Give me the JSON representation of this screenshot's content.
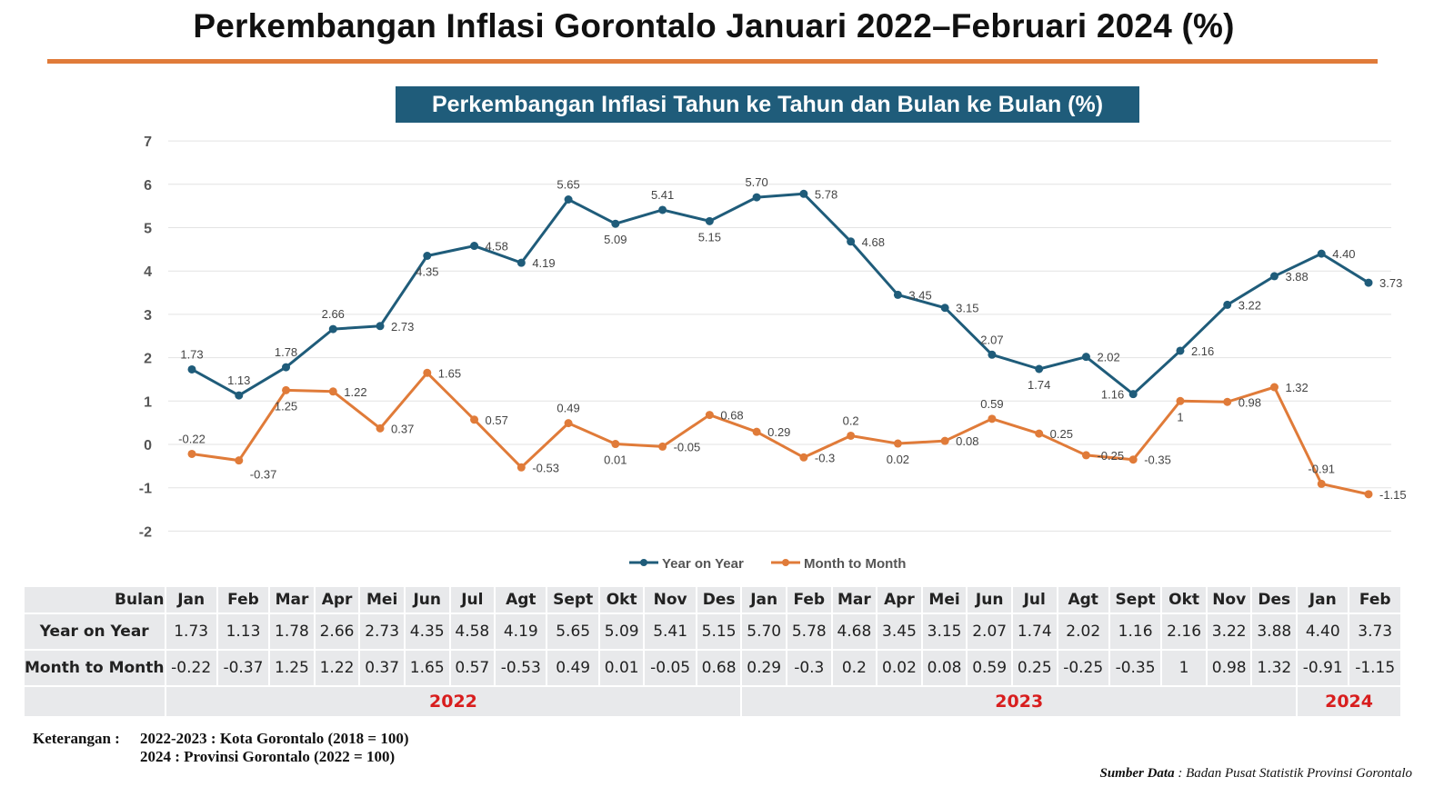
{
  "title": "Perkembangan Inflasi Gorontalo Januari 2022–Februari 2024 (%)",
  "subtitle": "Perkembangan Inflasi Tahun ke Tahun dan Bulan ke Bulan (%)",
  "colors": {
    "yoy": "#1f5c7a",
    "mtm": "#e07b39",
    "accent_rule": "#e07b39",
    "year_text": "#d81e1e"
  },
  "chart_data": {
    "type": "line",
    "title": "Perkembangan Inflasi Tahun ke Tahun dan Bulan ke Bulan (%)",
    "categories": [
      "Jan",
      "Feb",
      "Mar",
      "Apr",
      "Mei",
      "Jun",
      "Jul",
      "Agt",
      "Sept",
      "Okt",
      "Nov",
      "Des",
      "Jan",
      "Feb",
      "Mar",
      "Apr",
      "Mei",
      "Jun",
      "Jul",
      "Agt",
      "Sept",
      "Okt",
      "Nov",
      "Des",
      "Jan",
      "Feb"
    ],
    "years": [
      {
        "label": "2022",
        "months": 12
      },
      {
        "label": "2023",
        "months": 12
      },
      {
        "label": "2024",
        "months": 2
      }
    ],
    "series": [
      {
        "name": "Year on Year",
        "color": "#1f5c7a",
        "values": [
          1.73,
          1.13,
          1.78,
          2.66,
          2.73,
          4.35,
          4.58,
          4.19,
          5.65,
          5.09,
          5.41,
          5.15,
          5.7,
          5.78,
          4.68,
          3.45,
          3.15,
          2.07,
          1.74,
          2.02,
          1.16,
          2.16,
          3.22,
          3.88,
          4.4,
          3.73
        ],
        "labels": [
          "1.73",
          "1.13",
          "1.78",
          "2.66",
          "2.73",
          "4.35",
          "4.58",
          "4.19",
          "5.65",
          "5.09",
          "5.41",
          "5.15",
          "5.70",
          "5.78",
          "4.68",
          "3.45",
          "3.15",
          "2.07",
          "1.74",
          "2.02",
          "1.16",
          "2.16",
          "3.22",
          "3.88",
          "4.40",
          "3.73"
        ]
      },
      {
        "name": "Month to Month",
        "color": "#e07b39",
        "values": [
          -0.22,
          -0.37,
          1.25,
          1.22,
          0.37,
          1.65,
          0.57,
          -0.53,
          0.49,
          0.01,
          -0.05,
          0.68,
          0.29,
          -0.3,
          0.2,
          0.02,
          0.08,
          0.59,
          0.25,
          -0.25,
          -0.35,
          1,
          0.98,
          1.32,
          -0.91,
          -1.15
        ],
        "labels": [
          "-0.22",
          "-0.37",
          "1.25",
          "1.22",
          "0.37",
          "1.65",
          "0.57",
          "-0.53",
          "0.49",
          "0.01",
          "-0.05",
          "0.68",
          "0.29",
          "-0.3",
          "0.2",
          "0.02",
          "0.08",
          "0.59",
          "0.25",
          "-0.25",
          "-0.35",
          "1",
          "0.98",
          "1.32",
          "-0.91",
          "-1.15"
        ]
      }
    ],
    "ylim": [
      -2,
      7
    ],
    "yticks": [
      "-2",
      "-1",
      "0",
      "1",
      "2",
      "3",
      "4",
      "5",
      "6",
      "7"
    ],
    "grid": true,
    "legend": "bottom"
  },
  "table": {
    "header_label": "Bulan",
    "yoy_label": "Year on Year",
    "mtm_label": "Month to Month"
  },
  "note": {
    "label": "Keterangan :",
    "line1": "2022-2023 : Kota Gorontalo (2018 = 100)",
    "line2": "2024 : Provinsi Gorontalo (2022 = 100)"
  },
  "source": {
    "label": "Sumber Data",
    "text": " : Badan Pusat Statistik Provinsi Gorontalo"
  }
}
